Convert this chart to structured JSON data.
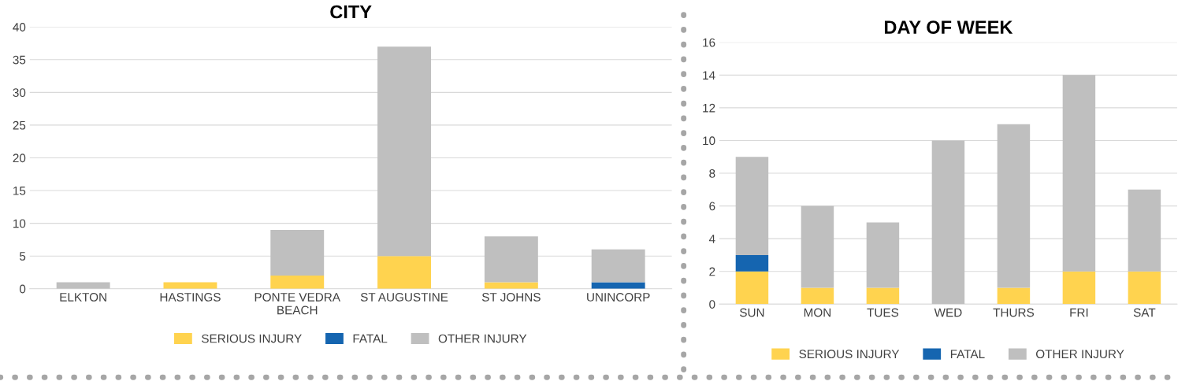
{
  "chart_data": [
    {
      "type": "bar",
      "title": "CITY",
      "stacked": true,
      "categories": [
        "ELKTON",
        "HASTINGS",
        "PONTE VEDRA\nBEACH",
        "ST AUGUSTINE",
        "ST JOHNS",
        "UNINCORP"
      ],
      "ylim": [
        0,
        40
      ],
      "yticks": [
        0,
        5,
        10,
        15,
        20,
        25,
        30,
        35,
        40
      ],
      "grid": "y",
      "legend": "bottom",
      "series": [
        {
          "name": "SERIOUS INJURY",
          "color": "#ffd34f",
          "values": [
            0,
            1,
            2,
            5,
            1,
            0
          ]
        },
        {
          "name": "FATAL",
          "color": "#1565b0",
          "values": [
            0,
            0,
            0,
            0,
            0,
            1
          ]
        },
        {
          "name": "OTHER INJURY",
          "color": "#bfbfbf",
          "values": [
            1,
            0,
            7,
            32,
            7,
            5
          ]
        }
      ]
    },
    {
      "type": "bar",
      "title": "DAY OF WEEK",
      "stacked": true,
      "categories": [
        "SUN",
        "MON",
        "TUES",
        "WED",
        "THURS",
        "FRI",
        "SAT"
      ],
      "ylim": [
        0,
        16
      ],
      "yticks": [
        0,
        2,
        4,
        6,
        8,
        10,
        12,
        14,
        16
      ],
      "grid": "y",
      "legend": "bottom",
      "series": [
        {
          "name": "SERIOUS INJURY",
          "color": "#ffd34f",
          "values": [
            2,
            1,
            1,
            0,
            1,
            2,
            2
          ]
        },
        {
          "name": "FATAL",
          "color": "#1565b0",
          "values": [
            1,
            0,
            0,
            0,
            0,
            0,
            0
          ]
        },
        {
          "name": "OTHER INJURY",
          "color": "#bfbfbf",
          "values": [
            6,
            5,
            4,
            10,
            10,
            12,
            5
          ]
        }
      ]
    }
  ]
}
